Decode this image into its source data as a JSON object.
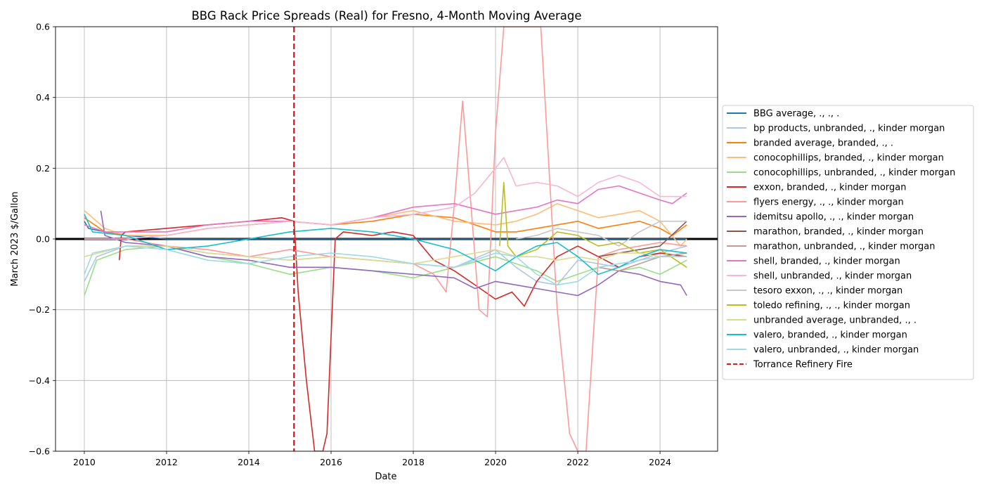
{
  "chart_data": {
    "type": "line",
    "title": "BBG Rack Price Spreads (Real) for Fresno, 4-Month Moving Average",
    "xlabel": "Date",
    "ylabel": "March 2023 $/Gallon",
    "xlim": [
      2009.3,
      2025.4
    ],
    "ylim": [
      -0.6,
      0.6
    ],
    "xticks": [
      2010,
      2012,
      2014,
      2016,
      2018,
      2020,
      2022,
      2024
    ],
    "yticks": [
      -0.6,
      -0.4,
      -0.2,
      0.0,
      0.2,
      0.4,
      0.6
    ],
    "ytick_labels": [
      "−0.6",
      "−0.4",
      "−0.2",
      "0.0",
      "0.2",
      "0.4",
      "0.6"
    ],
    "grid": true,
    "legend_position": "outside-right",
    "zero_line": {
      "y": 0,
      "color": "#000000"
    },
    "event_line": {
      "x": 2015.1,
      "label": "Torrance Refinery Fire",
      "color": "#e31a1c",
      "style": "dashed"
    },
    "series": [
      {
        "name": "BBG average, ., ., .",
        "color": "#1f77b4",
        "x": [
          2010.0,
          2010.1,
          2010.5,
          2011,
          2012,
          2013,
          2014,
          2015,
          2016,
          2017,
          2018,
          2019,
          2020,
          2021,
          2022,
          2023,
          2024,
          2024.65
        ],
        "y": [
          0.05,
          0.03,
          0.02,
          0.01,
          0.0,
          0.0,
          0.0,
          0.0,
          0.0,
          0.0,
          0.0,
          0.0,
          0.0,
          0.0,
          0.0,
          0.0,
          0.0,
          0.0
        ]
      },
      {
        "name": "bp products, unbranded, ., kinder morgan",
        "color": "#aec7e8",
        "x": [
          2010.0,
          2010.3,
          2011,
          2012,
          2013,
          2014,
          2015,
          2016,
          2017,
          2018,
          2019,
          2020,
          2020.5,
          2021,
          2021.5,
          2022,
          2022.5,
          2023,
          2023.5,
          2024,
          2024.65
        ],
        "y": [
          -0.12,
          -0.05,
          -0.02,
          -0.02,
          -0.04,
          -0.05,
          -0.06,
          -0.05,
          -0.06,
          -0.07,
          -0.08,
          -0.03,
          -0.08,
          -0.12,
          -0.13,
          -0.06,
          -0.07,
          -0.08,
          -0.06,
          -0.04,
          -0.02
        ]
      },
      {
        "name": "branded average, branded, ., .",
        "color": "#ff7f0e",
        "x": [
          2010.0,
          2010.5,
          2011,
          2012,
          2013,
          2014,
          2015,
          2016,
          2017,
          2018,
          2019,
          2020,
          2020.5,
          2021,
          2021.5,
          2022,
          2022.5,
          2023,
          2023.5,
          2024,
          2024.3,
          2024.65
        ],
        "y": [
          0.06,
          0.02,
          0.01,
          0.01,
          0.03,
          0.04,
          0.05,
          0.04,
          0.05,
          0.07,
          0.06,
          0.02,
          0.02,
          0.03,
          0.04,
          0.05,
          0.03,
          0.04,
          0.05,
          0.03,
          0.01,
          0.04
        ]
      },
      {
        "name": "conocophillips, branded, ., kinder morgan",
        "color": "#ffbb78",
        "x": [
          2010.0,
          2010.5,
          2011,
          2012,
          2013,
          2014,
          2015,
          2016,
          2017,
          2018,
          2019,
          2020,
          2020.5,
          2021,
          2021.5,
          2022,
          2022.5,
          2023,
          2023.5,
          2024,
          2024.5,
          2024.65
        ],
        "y": [
          0.08,
          0.03,
          0.01,
          0.01,
          0.03,
          0.04,
          0.05,
          0.04,
          0.06,
          0.08,
          0.05,
          0.04,
          0.05,
          0.07,
          0.1,
          0.08,
          0.06,
          0.07,
          0.08,
          0.05,
          -0.02,
          0.0
        ]
      },
      {
        "name": "conocophillips, unbranded, ., kinder morgan",
        "color": "#98df8a",
        "x": [
          2010.0,
          2010.3,
          2011,
          2012,
          2013,
          2014,
          2015,
          2016,
          2017,
          2018,
          2019,
          2020,
          2020.5,
          2021,
          2021.5,
          2022,
          2022.5,
          2023,
          2023.5,
          2024,
          2024.65
        ],
        "y": [
          -0.16,
          -0.06,
          -0.03,
          -0.02,
          -0.05,
          -0.07,
          -0.1,
          -0.08,
          -0.09,
          -0.11,
          -0.08,
          -0.05,
          -0.07,
          -0.09,
          -0.12,
          -0.1,
          -0.08,
          -0.09,
          -0.08,
          -0.1,
          -0.06
        ]
      },
      {
        "name": "exxon, branded, ., kinder morgan",
        "color": "#d62728",
        "x": [
          2010.85,
          2010.9,
          2011,
          2012,
          2013,
          2014,
          2014.8,
          2015.1,
          2015.2,
          2015.4,
          2015.6,
          2015.8,
          2015.9,
          2016.1,
          2016.3,
          2017,
          2017.5,
          2018,
          2018.5,
          2019,
          2019.5,
          2020,
          2020.4,
          2020.7,
          2021,
          2021.5,
          2022,
          2022.5,
          2023,
          2023.5,
          2024,
          2024.65
        ],
        "y": [
          -0.06,
          0.01,
          0.02,
          0.03,
          0.04,
          0.05,
          0.06,
          0.05,
          -0.15,
          -0.4,
          -0.6,
          -0.6,
          -0.55,
          0.0,
          0.02,
          0.01,
          0.02,
          0.01,
          -0.06,
          -0.09,
          -0.13,
          -0.17,
          -0.15,
          -0.19,
          -0.12,
          -0.05,
          -0.02,
          -0.05,
          -0.08,
          -0.05,
          -0.04,
          -0.05
        ]
      },
      {
        "name": "flyers energy, ., ., kinder morgan",
        "color": "#ff9896",
        "x": [
          2010.0,
          2011,
          2012,
          2013,
          2014,
          2015,
          2016,
          2017,
          2018,
          2018.5,
          2018.8,
          2019,
          2019.2,
          2019.4,
          2019.6,
          2019.8,
          2020,
          2020.2,
          2020.3,
          2020.5,
          2021,
          2021.1,
          2021.3,
          2021.5,
          2021.8,
          2022,
          2022.2,
          2022.5,
          2023,
          2023.5,
          2024,
          2024.65
        ],
        "y": [
          0.0,
          0.0,
          -0.02,
          -0.03,
          -0.05,
          -0.03,
          -0.05,
          -0.06,
          -0.07,
          -0.1,
          -0.15,
          0.1,
          0.39,
          0.1,
          -0.2,
          -0.22,
          0.3,
          0.6,
          0.6,
          0.6,
          0.6,
          0.6,
          0.2,
          -0.2,
          -0.55,
          -0.6,
          -0.6,
          -0.05,
          -0.03,
          -0.02,
          -0.01,
          -0.02
        ]
      },
      {
        "name": "idemitsu apollo, ., ., kinder morgan",
        "color": "#9467bd",
        "x": [
          2010.4,
          2010.5,
          2011,
          2012,
          2013,
          2014,
          2015,
          2016,
          2017,
          2018,
          2019,
          2019.5,
          2020,
          2020.5,
          2021,
          2021.5,
          2022,
          2022.5,
          2023,
          2023.5,
          2024,
          2024.5,
          2024.65
        ],
        "y": [
          0.08,
          0.01,
          -0.01,
          -0.02,
          -0.05,
          -0.06,
          -0.08,
          -0.08,
          -0.09,
          -0.1,
          -0.11,
          -0.14,
          -0.12,
          -0.13,
          -0.14,
          -0.15,
          -0.16,
          -0.13,
          -0.09,
          -0.1,
          -0.12,
          -0.13,
          -0.16
        ]
      },
      {
        "name": "marathon, branded, ., kinder morgan",
        "color": "#8c564b",
        "x": [
          2022.5,
          2023,
          2023.5,
          2024,
          2024.65
        ],
        "y": [
          -0.05,
          -0.04,
          -0.03,
          -0.02,
          0.05
        ]
      },
      {
        "name": "marathon, unbranded, ., kinder morgan",
        "color": "#c49c94",
        "x": [
          2022.5,
          2023,
          2023.5,
          2024,
          2024.65
        ],
        "y": [
          -0.08,
          -0.09,
          -0.07,
          -0.05,
          -0.04
        ]
      },
      {
        "name": "shell, branded, ., kinder morgan",
        "color": "#e377c2",
        "x": [
          2010.0,
          2010.5,
          2011,
          2012,
          2013,
          2014,
          2015,
          2016,
          2017,
          2018,
          2019,
          2020,
          2020.5,
          2021,
          2021.5,
          2022,
          2022.5,
          2023,
          2023.5,
          2024,
          2024.3,
          2024.65
        ],
        "y": [
          0.04,
          0.02,
          0.02,
          0.02,
          0.04,
          0.05,
          0.05,
          0.04,
          0.06,
          0.09,
          0.1,
          0.07,
          0.08,
          0.09,
          0.11,
          0.1,
          0.14,
          0.15,
          0.13,
          0.11,
          0.1,
          0.13
        ]
      },
      {
        "name": "shell, unbranded, ., kinder morgan",
        "color": "#f7b6d2",
        "x": [
          2010.0,
          2011,
          2012,
          2013,
          2014,
          2015,
          2016,
          2017,
          2018,
          2019,
          2019.5,
          2020,
          2020.2,
          2020.5,
          2021,
          2021.5,
          2022,
          2022.5,
          2023,
          2023.5,
          2024,
          2024.65
        ],
        "y": [
          0.0,
          0.0,
          0.01,
          0.03,
          0.04,
          0.05,
          0.04,
          0.06,
          0.07,
          0.09,
          0.13,
          0.2,
          0.23,
          0.15,
          0.16,
          0.15,
          0.12,
          0.16,
          0.18,
          0.16,
          0.12,
          0.12
        ]
      },
      {
        "name": "tesoro exxon, ., ., kinder morgan",
        "color": "#c7c7c7",
        "x": [
          2020.5,
          2021,
          2021.5,
          2022,
          2022.5,
          2023,
          2023.5,
          2024,
          2024.65
        ],
        "y": [
          0.0,
          0.01,
          0.03,
          0.02,
          0.01,
          -0.02,
          0.02,
          0.05,
          0.05
        ]
      },
      {
        "name": "toledo refining, ., ., kinder morgan",
        "color": "#bcbd22",
        "x": [
          2020.1,
          2020.2,
          2020.3,
          2020.5,
          2021,
          2021.5,
          2022,
          2022.5,
          2023,
          2023.5,
          2024,
          2024.65
        ],
        "y": [
          -0.02,
          0.16,
          -0.02,
          -0.05,
          -0.03,
          0.02,
          0.01,
          -0.02,
          -0.01,
          -0.04,
          -0.03,
          -0.08
        ]
      },
      {
        "name": "unbranded average, unbranded, ., .",
        "color": "#dbdb8d",
        "x": [
          2010.0,
          2011,
          2012,
          2013,
          2014,
          2015,
          2016,
          2017,
          2018,
          2019,
          2020,
          2020.5,
          2021,
          2021.5,
          2022,
          2022.5,
          2023,
          2023.5,
          2024,
          2024.65
        ],
        "y": [
          -0.05,
          -0.02,
          -0.02,
          -0.04,
          -0.05,
          -0.06,
          -0.05,
          -0.06,
          -0.07,
          -0.05,
          -0.03,
          -0.05,
          -0.05,
          -0.06,
          -0.05,
          -0.06,
          -0.04,
          -0.04,
          -0.05,
          -0.05
        ]
      },
      {
        "name": "valero, branded, ., kinder morgan",
        "color": "#17becf",
        "x": [
          2010.0,
          2010.2,
          2011,
          2012,
          2013,
          2014,
          2015,
          2016,
          2017,
          2018,
          2019,
          2019.5,
          2020,
          2020.5,
          2021,
          2021.5,
          2022,
          2022.5,
          2023,
          2023.5,
          2024,
          2024.65
        ],
        "y": [
          0.07,
          0.02,
          0.01,
          -0.03,
          -0.02,
          0.0,
          0.02,
          0.03,
          0.02,
          0.0,
          -0.03,
          -0.06,
          -0.09,
          -0.05,
          -0.02,
          -0.01,
          -0.05,
          -0.1,
          -0.08,
          -0.05,
          -0.03,
          -0.04
        ]
      },
      {
        "name": "valero, unbranded, ., kinder morgan",
        "color": "#9edae5",
        "x": [
          2010.0,
          2010.2,
          2011,
          2012,
          2013,
          2014,
          2015,
          2016,
          2017,
          2018,
          2019,
          2020,
          2020.5,
          2021,
          2021.5,
          2022,
          2022.5,
          2023,
          2023.5,
          2024,
          2024.65
        ],
        "y": [
          -0.1,
          -0.04,
          -0.02,
          -0.03,
          -0.06,
          -0.07,
          -0.05,
          -0.04,
          -0.05,
          -0.07,
          -0.08,
          -0.04,
          -0.05,
          -0.1,
          -0.13,
          -0.12,
          -0.08,
          -0.07,
          -0.06,
          -0.05,
          -0.05
        ]
      }
    ]
  }
}
